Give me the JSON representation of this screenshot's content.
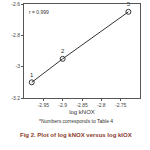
{
  "chart_data": {
    "type": "scatter",
    "x": [
      -2.98,
      -2.9,
      -2.73
    ],
    "values": [
      -3.1,
      -2.95,
      -2.65
    ],
    "labels": [
      "1",
      "2",
      "5"
    ],
    "marker": "circle-open",
    "line_style": "solid",
    "color": "#333333",
    "xlim": [
      -3.0,
      -2.7
    ],
    "xticks": [
      -2.95,
      -2.9,
      -2.85,
      -2.8,
      -2.75
    ],
    "ylim": [
      -3.2,
      -2.6
    ],
    "yticks": [
      -3.2,
      -3,
      -2.8,
      -2.6
    ],
    "grid": false,
    "xlabel": "log kNOX",
    "annotation": "r = 0.999",
    "footnote": "*Numbers corresponds to Table 4",
    "caption": "Fig 2. Plot of log kNOX versus log kIOX"
  }
}
